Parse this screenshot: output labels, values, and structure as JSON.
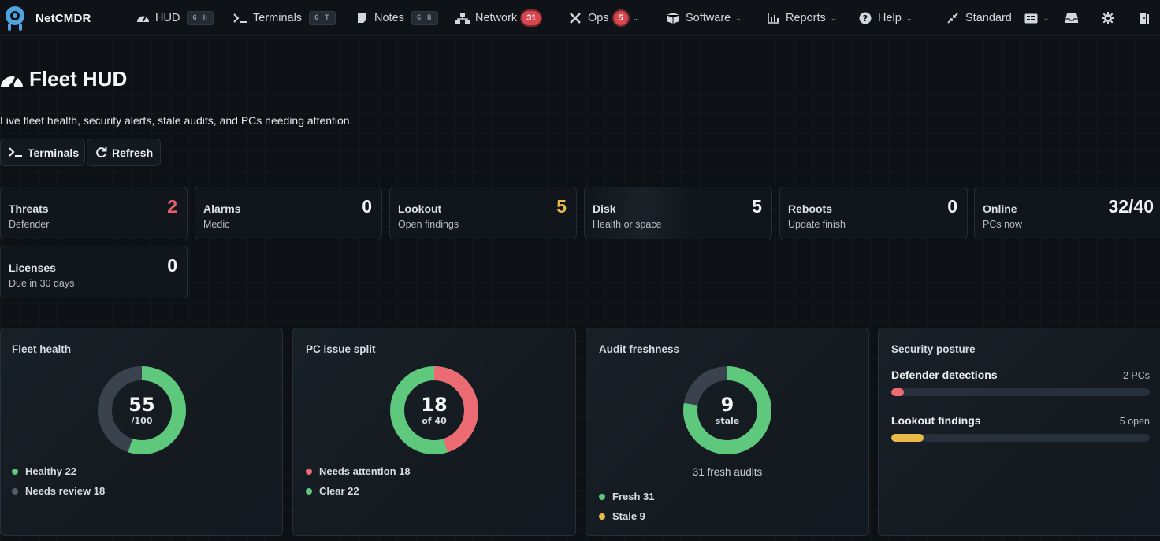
{
  "nav": {
    "brand": "NetCMDR",
    "items": [
      {
        "label": "HUD",
        "kbd": "G H"
      },
      {
        "label": "Terminals",
        "kbd": "G T"
      },
      {
        "label": "Notes",
        "kbd": "G N"
      },
      {
        "label": "Network",
        "badge": "31"
      },
      {
        "label": "Ops",
        "badge": "5"
      },
      {
        "label": "Software"
      },
      {
        "label": "Reports"
      },
      {
        "label": "Help"
      },
      {
        "label": "Standard"
      }
    ]
  },
  "page": {
    "title": "Fleet HUD",
    "subtitle": "Live fleet health, security alerts, stale audits, and PCs needing attention.",
    "buttons": {
      "terminals": "Terminals",
      "refresh": "Refresh"
    }
  },
  "stats": [
    {
      "label": "Threats",
      "sub": "Defender",
      "value": "2",
      "color": "#e8606b"
    },
    {
      "label": "Alarms",
      "sub": "Medic",
      "value": "0",
      "color": "#f2f4f7"
    },
    {
      "label": "Lookout",
      "sub": "Open findings",
      "value": "5",
      "color": "#e9b949"
    },
    {
      "label": "Disk",
      "sub": "Health or space",
      "value": "5",
      "color": "#f2f4f7"
    },
    {
      "label": "Reboots",
      "sub": "Update finish",
      "value": "0",
      "color": "#f2f4f7"
    },
    {
      "label": "Online",
      "sub": "PCs now",
      "value": "32/40",
      "color": "#f2f4f7"
    },
    {
      "label": "Licenses",
      "sub": "Due in 30 days",
      "value": "0",
      "color": "#f2f4f7"
    }
  ],
  "colors": {
    "green": "#5ec97c",
    "red": "#ec6b73",
    "gray": "#39424d",
    "yellow": "#e9b949",
    "accent": "#4fa3e0"
  },
  "panels": {
    "fleet_health": {
      "title": "Fleet health",
      "center_value": "55",
      "center_sub": "/100",
      "fraction": 0.55,
      "legend": [
        {
          "label": "Healthy 22",
          "color": "#5ec97c"
        },
        {
          "label": "Needs review 18",
          "color": "#555d67"
        }
      ]
    },
    "pc_issue_split": {
      "title": "PC issue split",
      "center_value": "18",
      "center_sub": "of 40",
      "fraction": 0.45,
      "legend": [
        {
          "label": "Needs attention 18",
          "color": "#ec6b73"
        },
        {
          "label": "Clear 22",
          "color": "#5ec97c"
        }
      ]
    },
    "audit_freshness": {
      "title": "Audit freshness",
      "center_value": "9",
      "center_sub": "stale",
      "fraction": 0.775,
      "caption": "31 fresh audits",
      "legend": [
        {
          "label": "Fresh 31",
          "color": "#5ec97c"
        },
        {
          "label": "Stale 9",
          "color": "#e9b949"
        }
      ]
    },
    "security_posture": {
      "title": "Security posture",
      "rows": [
        {
          "label": "Defender detections",
          "right": "2 PCs",
          "fraction": 0.05,
          "color": "#ec6b73"
        },
        {
          "label": "Lookout findings",
          "right": "5 open",
          "fraction": 0.125,
          "color": "#e9b949"
        }
      ]
    }
  }
}
